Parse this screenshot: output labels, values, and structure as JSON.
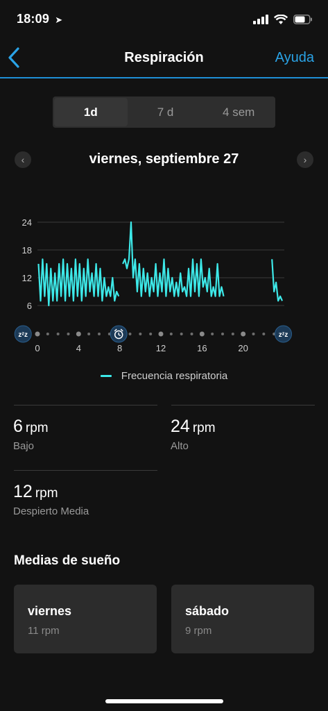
{
  "status_bar": {
    "time": "18:09",
    "battery_level": 0.72
  },
  "nav": {
    "title": "Respiración",
    "help": "Ayuda"
  },
  "tabs": [
    {
      "label": "1d",
      "active": true
    },
    {
      "label": "7 d",
      "active": false
    },
    {
      "label": "4 sem",
      "active": false
    }
  ],
  "date_nav": {
    "title": "viernes, septiembre 27"
  },
  "chart_data": {
    "type": "line",
    "ylim": [
      6,
      24
    ],
    "yticks": [
      "24",
      "18",
      "12",
      "6"
    ],
    "xlim": [
      0,
      24
    ],
    "xticks": [
      "0",
      "4",
      "8",
      "12",
      "16",
      "20"
    ],
    "legend": "Frecuencia respiratoria",
    "legend_position": "bottom",
    "series": [
      {
        "name": "Frecuencia respiratoria",
        "color": "#3de8e8",
        "segments": [
          {
            "x": [
              0.1,
              0.3,
              0.5,
              0.7,
              0.9,
              1.1,
              1.3,
              1.5,
              1.7,
              1.9,
              2.1,
              2.3,
              2.5,
              2.7,
              2.9,
              3.1,
              3.3,
              3.5,
              3.7,
              3.9,
              4.1,
              4.3,
              4.5,
              4.7,
              4.9,
              5.1,
              5.3,
              5.5,
              5.7,
              5.9,
              6.1,
              6.3,
              6.5,
              6.7,
              6.9,
              7.1,
              7.3,
              7.5,
              7.7,
              7.9
            ],
            "y": [
              15,
              7,
              16,
              8,
              15,
              6,
              14,
              7,
              13,
              7,
              15,
              8,
              16,
              7,
              15,
              8,
              14,
              7,
              16,
              8,
              15,
              7,
              14,
              8,
              16,
              9,
              13,
              8,
              15,
              8,
              14,
              7,
              12,
              8,
              10,
              8,
              12,
              7,
              9,
              8
            ]
          },
          {
            "x": [
              8.3,
              8.5,
              8.7,
              8.9,
              9.1,
              9.3,
              9.5,
              9.7,
              9.9,
              10.1,
              10.3,
              10.5,
              10.7,
              10.9,
              11.1,
              11.3,
              11.5,
              11.7,
              11.9,
              12.1,
              12.3,
              12.5,
              12.7,
              12.9,
              13.1,
              13.3,
              13.5,
              13.7,
              13.9,
              14.1,
              14.3,
              14.5,
              14.7,
              14.9,
              15.1,
              15.3,
              15.5,
              15.7,
              15.9,
              16.1,
              16.3,
              16.5,
              16.7,
              16.9,
              17.1,
              17.3,
              17.5,
              17.7,
              17.9,
              18.1
            ],
            "y": [
              15,
              16,
              14,
              16,
              24,
              12,
              16,
              9,
              15,
              8,
              14,
              9,
              13,
              8,
              12,
              9,
              15,
              8,
              13,
              9,
              16,
              8,
              14,
              9,
              12,
              8,
              11,
              8,
              13,
              9,
              10,
              8,
              14,
              8,
              16,
              9,
              15,
              8,
              16,
              10,
              12,
              9,
              14,
              8,
              10,
              8,
              15,
              8,
              10,
              8
            ]
          },
          {
            "x": [
              22.8,
              23.0,
              23.2,
              23.4,
              23.6,
              23.8
            ],
            "y": [
              16,
              9,
              11,
              7,
              8,
              7
            ]
          }
        ]
      }
    ]
  },
  "stats": [
    {
      "value": "6",
      "unit": "rpm",
      "label": "Bajo"
    },
    {
      "value": "24",
      "unit": "rpm",
      "label": "Alto"
    },
    {
      "value": "12",
      "unit": "rpm",
      "label": "Despierto Media"
    }
  ],
  "sleep_section": {
    "title": "Medias de sueño",
    "cards": [
      {
        "day": "viernes",
        "value": "11 rpm"
      },
      {
        "day": "sábado",
        "value": "9 rpm"
      }
    ]
  },
  "icons": {
    "sleep_marker": "zzz-icon",
    "wake_marker": "alarm-clock-icon"
  }
}
